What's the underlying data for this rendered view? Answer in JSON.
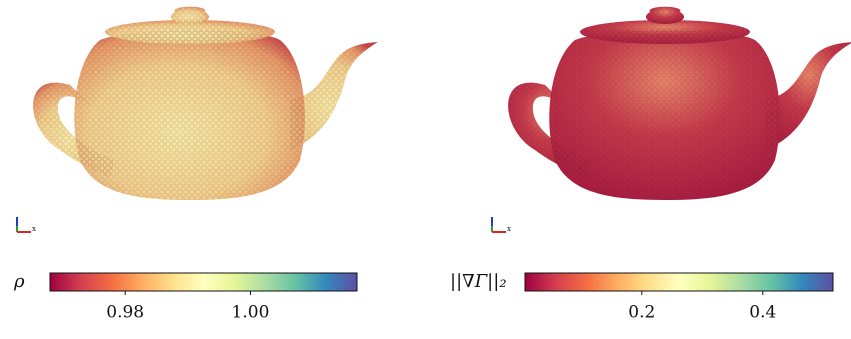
{
  "panels": [
    {
      "label": "ρ",
      "triad_label": "x",
      "colorbar": {
        "lim": [
          0.968,
          1.017
        ],
        "ticks": [
          0.98,
          {
            "value": 1,
            "label": "1.00"
          }
        ]
      }
    },
    {
      "label": "||∇Γ||₂",
      "triad_label": "x",
      "colorbar": {
        "lim": [
          0.007,
          0.516
        ],
        "ticks": [
          0.2,
          0.4
        ]
      }
    }
  ]
}
